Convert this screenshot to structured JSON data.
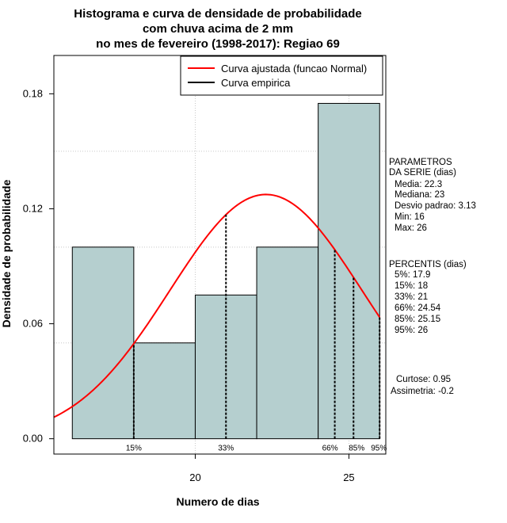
{
  "chart_data": {
    "type": "histogram",
    "title_lines": [
      "Histograma e curva de densidade de probabilidade",
      "com chuva acima de 2 mm",
      "no mes de fevereiro (1998-2017): Regiao 69"
    ],
    "xlabel": "Numero de dias",
    "ylabel": "Densidade de probabilidade",
    "xlim": [
      15.4,
      26.2
    ],
    "ylim": [
      -0.008,
      0.2
    ],
    "x_ticks": [
      20,
      25
    ],
    "y_ticks": [
      0.0,
      0.06,
      0.12,
      0.18
    ],
    "y_tick_labels": [
      "0.00",
      "0.06",
      "0.12",
      "0.18"
    ],
    "grid": true,
    "bars": [
      {
        "from": 16,
        "to": 18,
        "density": 0.1
      },
      {
        "from": 18,
        "to": 20,
        "density": 0.05
      },
      {
        "from": 20,
        "to": 22,
        "density": 0.075
      },
      {
        "from": 22,
        "to": 24,
        "density": 0.1
      },
      {
        "from": 24,
        "to": 26,
        "density": 0.175
      }
    ],
    "fitted_curve": {
      "name": "Curva ajustada (funcao Normal)",
      "distribution": "normal",
      "mean": 22.3,
      "sd": 3.13,
      "color": "#ff0000"
    },
    "empirical_curve": {
      "name": "Curva empirica",
      "color": "#000000"
    },
    "percentile_lines": [
      {
        "label": "15%",
        "x": 18
      },
      {
        "label": "33%",
        "x": 21
      },
      {
        "label": "66%",
        "x": 24.54
      },
      {
        "label": "85%",
        "x": 25.15
      },
      {
        "label": "95%",
        "x": 26
      }
    ],
    "legend": {
      "position": "top-right",
      "entries": [
        "Curva ajustada (funcao Normal)",
        "Curva empirica"
      ]
    },
    "bar_color": "#b5cfcf",
    "parametros": {
      "heading": [
        "PARAMETROS",
        "DA SERIE (dias)"
      ],
      "lines": [
        "Media: 22.3",
        "Mediana: 23",
        "Desvio padrao: 3.13",
        "Min: 16",
        "Max: 26"
      ]
    },
    "percentis": {
      "heading": "PERCENTIS (dias)",
      "lines": [
        "5%: 17.9",
        "15%: 18",
        "33%: 21",
        "66%: 24.54",
        "85%: 25.15",
        "95%: 26"
      ]
    },
    "shape_stats": [
      "Curtose: 0.95",
      "Assimetria: -0.2"
    ]
  }
}
